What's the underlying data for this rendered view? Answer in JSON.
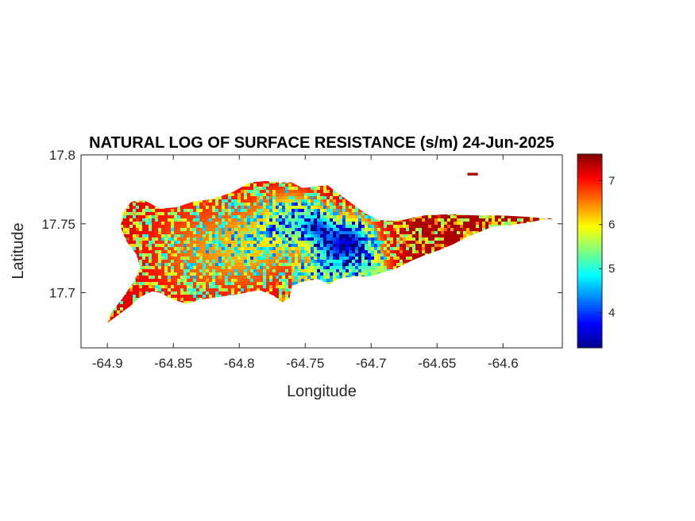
{
  "chart_data": {
    "type": "heatmap",
    "title": "NATURAL LOG OF SURFACE RESISTANCE (s/m) 24-Jun-2025",
    "xlabel": "Longitude",
    "ylabel": "Latitude",
    "xlim": [
      -64.92,
      -64.555
    ],
    "ylim": [
      17.66,
      17.8
    ],
    "xticks": [
      -64.9,
      -64.85,
      -64.8,
      -64.75,
      -64.7,
      -64.65,
      -64.6
    ],
    "xtick_labels": [
      "-64.9",
      "-64.85",
      "-64.8",
      "-64.75",
      "-64.7",
      "-64.65",
      "-64.6"
    ],
    "yticks": [
      17.7,
      17.75,
      17.8
    ],
    "ytick_labels": [
      "17.7",
      "17.75",
      "17.8"
    ],
    "colorbar": {
      "colormap": "jet",
      "clim": [
        3.2,
        7.6
      ],
      "ticks": [
        4,
        5,
        6,
        7
      ],
      "tick_labels": [
        "4",
        "5",
        "6",
        "7"
      ]
    },
    "grid": false,
    "region_outline": [
      [
        -64.9,
        17.678
      ],
      [
        -64.893,
        17.683
      ],
      [
        -64.883,
        17.69
      ],
      [
        -64.875,
        17.697
      ],
      [
        -64.866,
        17.701
      ],
      [
        -64.86,
        17.7
      ],
      [
        -64.85,
        17.695
      ],
      [
        -64.84,
        17.692
      ],
      [
        -64.83,
        17.695
      ],
      [
        -64.815,
        17.697
      ],
      [
        -64.8,
        17.699
      ],
      [
        -64.785,
        17.702
      ],
      [
        -64.774,
        17.698
      ],
      [
        -64.768,
        17.693
      ],
      [
        -64.762,
        17.696
      ],
      [
        -64.76,
        17.705
      ],
      [
        -64.752,
        17.708
      ],
      [
        -64.74,
        17.71
      ],
      [
        -64.732,
        17.706
      ],
      [
        -64.725,
        17.71
      ],
      [
        -64.713,
        17.712
      ],
      [
        -64.7,
        17.712
      ],
      [
        -64.69,
        17.715
      ],
      [
        -64.68,
        17.718
      ],
      [
        -64.67,
        17.723
      ],
      [
        -64.66,
        17.727
      ],
      [
        -64.648,
        17.731
      ],
      [
        -64.638,
        17.735
      ],
      [
        -64.628,
        17.74
      ],
      [
        -64.618,
        17.744
      ],
      [
        -64.608,
        17.748
      ],
      [
        -64.595,
        17.749
      ],
      [
        -64.58,
        17.751
      ],
      [
        -64.565,
        17.754
      ],
      [
        -64.561,
        17.753
      ],
      [
        -64.58,
        17.755
      ],
      [
        -64.6,
        17.756
      ],
      [
        -64.62,
        17.756
      ],
      [
        -64.64,
        17.757
      ],
      [
        -64.66,
        17.756
      ],
      [
        -64.675,
        17.753
      ],
      [
        -64.685,
        17.752
      ],
      [
        -64.695,
        17.753
      ],
      [
        -64.705,
        17.758
      ],
      [
        -64.715,
        17.765
      ],
      [
        -64.725,
        17.772
      ],
      [
        -64.733,
        17.778
      ],
      [
        -64.742,
        17.777
      ],
      [
        -64.752,
        17.776
      ],
      [
        -64.76,
        17.78
      ],
      [
        -64.77,
        17.78
      ],
      [
        -64.78,
        17.781
      ],
      [
        -64.792,
        17.78
      ],
      [
        -64.805,
        17.773
      ],
      [
        -64.82,
        17.768
      ],
      [
        -64.835,
        17.766
      ],
      [
        -64.848,
        17.762
      ],
      [
        -64.86,
        17.761
      ],
      [
        -64.872,
        17.767
      ],
      [
        -64.882,
        17.766
      ],
      [
        -64.888,
        17.758
      ],
      [
        -64.89,
        17.748
      ],
      [
        -64.886,
        17.738
      ],
      [
        -64.878,
        17.728
      ],
      [
        -64.875,
        17.718
      ],
      [
        -64.88,
        17.708
      ],
      [
        -64.89,
        17.694
      ],
      [
        -64.897,
        17.686
      ]
    ],
    "islet_outline": [
      [
        -64.627,
        17.787
      ],
      [
        -64.619,
        17.787
      ],
      [
        -64.619,
        17.785
      ],
      [
        -64.627,
        17.785
      ]
    ],
    "value_field": {
      "base_ln_rs": 7.2,
      "anomalies": [
        {
          "lon": -64.715,
          "lat": 17.738,
          "spread": 0.016,
          "delta": -3.0
        },
        {
          "lon": -64.74,
          "lat": 17.748,
          "spread": 0.012,
          "delta": -2.2
        },
        {
          "lon": -64.76,
          "lat": 17.752,
          "spread": 0.02,
          "delta": -1.6
        },
        {
          "lon": -64.73,
          "lat": 17.73,
          "spread": 0.014,
          "delta": -1.4
        },
        {
          "lon": -64.79,
          "lat": 17.735,
          "spread": 0.03,
          "delta": -0.9
        },
        {
          "lon": -64.7,
          "lat": 17.72,
          "spread": 0.014,
          "delta": -1.1
        },
        {
          "lon": -64.735,
          "lat": 17.717,
          "spread": 0.018,
          "delta": -0.7
        },
        {
          "lon": -64.835,
          "lat": 17.73,
          "spread": 0.035,
          "delta": -0.6
        }
      ],
      "east_high_value": 7.4,
      "speckle_amplitude": 1.4
    }
  }
}
